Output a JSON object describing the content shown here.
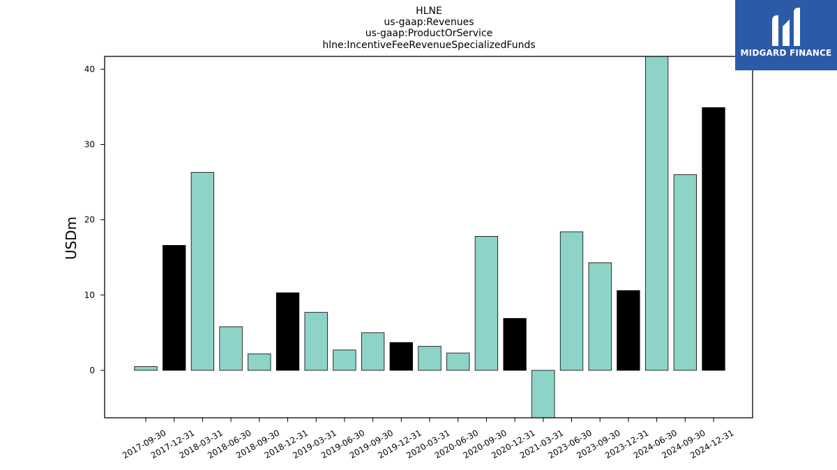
{
  "logo": {
    "text": "MIDGARD FINANCE",
    "icon": "midgard-logo-icon",
    "background": "#2c5aa9"
  },
  "chart_data": {
    "type": "bar",
    "title_lines": [
      "HLNE",
      "us-gaap:Revenues",
      "us-gaap:ProductOrService",
      "hlne:IncentiveFeeRevenueSpecializedFunds"
    ],
    "ylabel": "USDm",
    "xlabel": "",
    "ylim": [
      -6.3,
      41.7
    ],
    "yticks": [
      0,
      10,
      20,
      30,
      40
    ],
    "grid": false,
    "colors": {
      "default": "#8dd3c7",
      "highlight": "#000000"
    },
    "categories": [
      "2017-09-30",
      "2017-12-31",
      "2018-03-31",
      "2018-06-30",
      "2018-09-30",
      "2018-12-31",
      "2019-03-31",
      "2019-06-30",
      "2019-09-30",
      "2019-12-31",
      "2020-03-31",
      "2020-06-30",
      "2020-09-30",
      "2020-12-31",
      "2021-03-31",
      "2023-06-30",
      "2023-09-30",
      "2023-12-31",
      "2024-06-30",
      "2024-09-30",
      "2024-12-31"
    ],
    "values": [
      0.5,
      16.6,
      26.3,
      5.8,
      2.2,
      10.3,
      7.7,
      2.7,
      5.0,
      3.7,
      3.2,
      2.3,
      17.8,
      6.9,
      -6.3,
      18.4,
      14.3,
      10.6,
      41.7,
      26.0,
      34.9
    ],
    "highlight": [
      false,
      true,
      false,
      false,
      false,
      true,
      false,
      false,
      false,
      true,
      false,
      false,
      false,
      true,
      false,
      false,
      false,
      true,
      false,
      false,
      true
    ]
  }
}
